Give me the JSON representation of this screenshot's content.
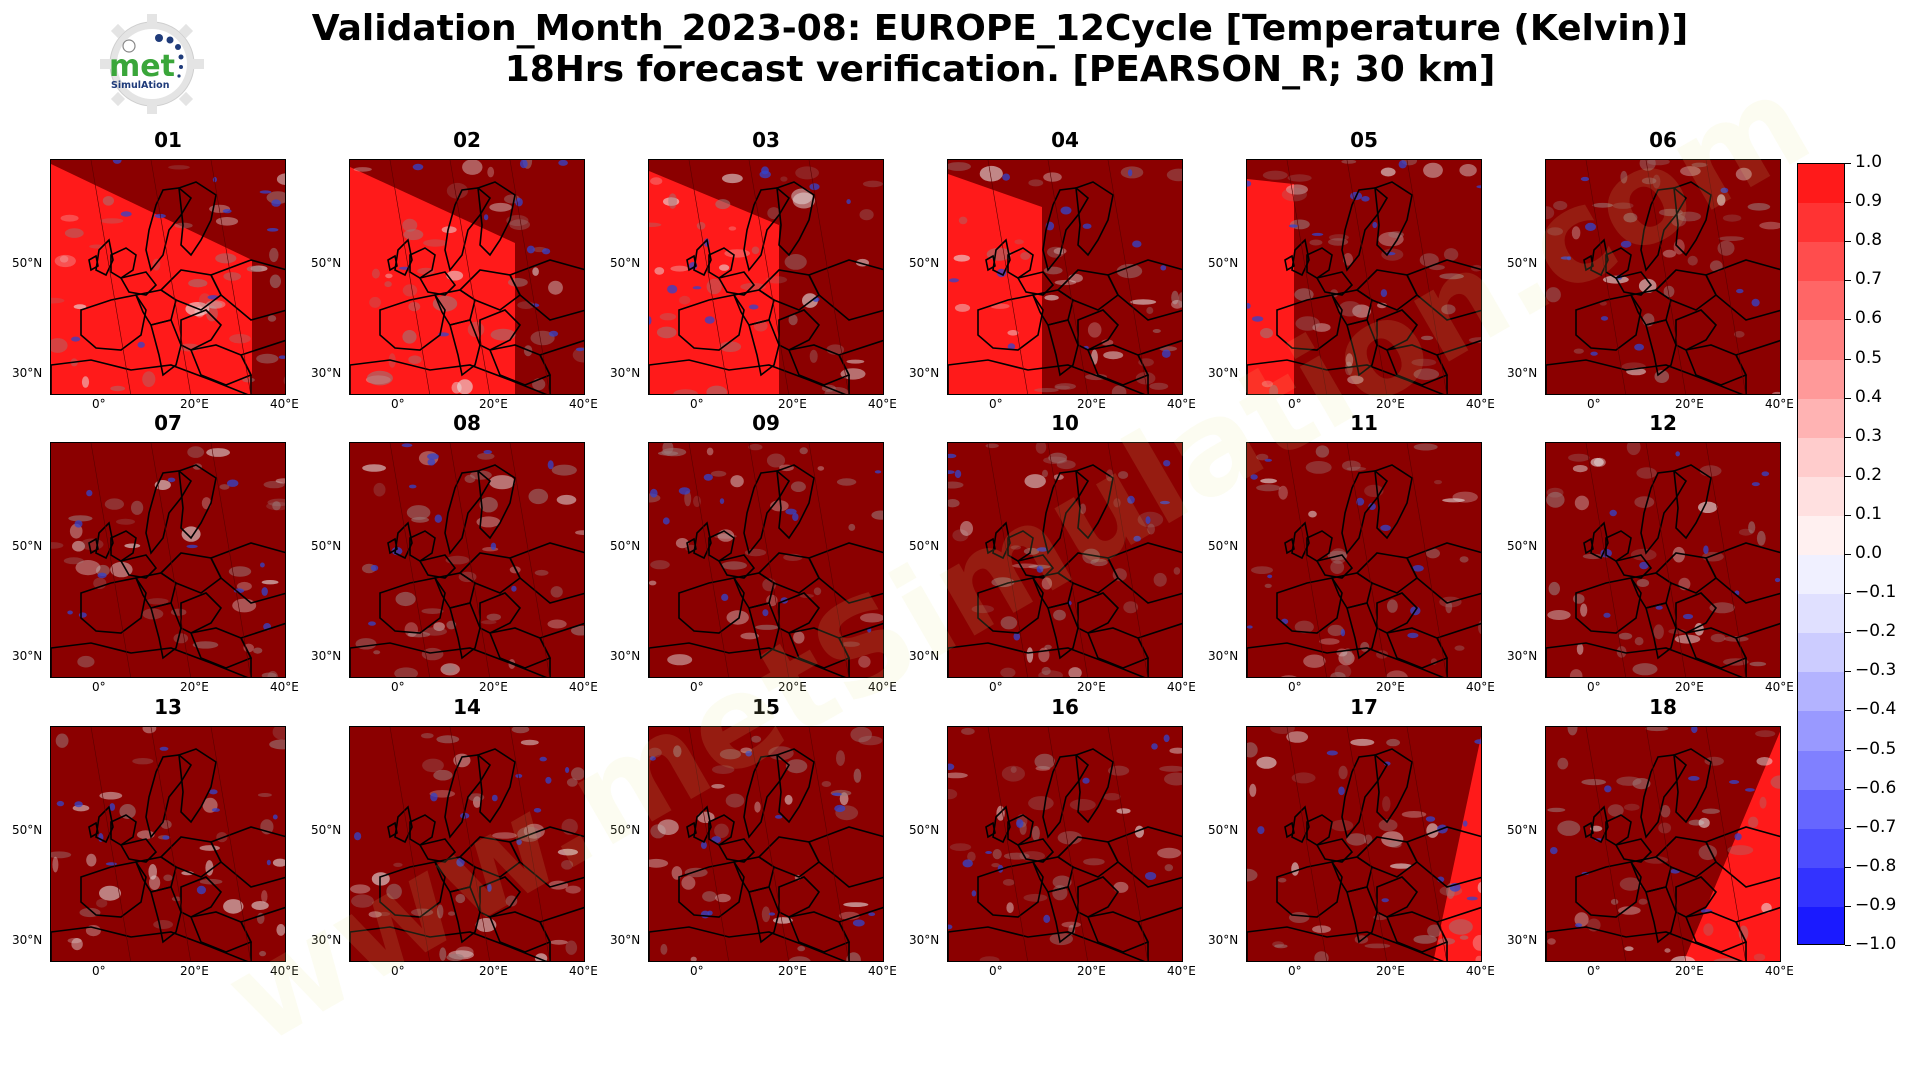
{
  "title": {
    "line1": "Validation_Month_2023-08: EUROPE_12Cycle [Temperature (Kelvin)]",
    "line2": "18Hrs forecast verification.  [PEARSON_R; 30 km]"
  },
  "logo": {
    "text_main": "met",
    "text_sub": "SimulAtion"
  },
  "watermark": "www.metSimulation.com",
  "panels": [
    {
      "label": "01",
      "fade": 0.85
    },
    {
      "label": "02",
      "fade": 0.7
    },
    {
      "label": "03",
      "fade": 0.55
    },
    {
      "label": "04",
      "fade": 0.4
    },
    {
      "label": "05",
      "fade": 0.2
    },
    {
      "label": "06",
      "fade": 0
    },
    {
      "label": "07",
      "fade": 0
    },
    {
      "label": "08",
      "fade": 0
    },
    {
      "label": "09",
      "fade": 0
    },
    {
      "label": "10",
      "fade": 0
    },
    {
      "label": "11",
      "fade": 0
    },
    {
      "label": "12",
      "fade": 0
    },
    {
      "label": "13",
      "fade": 0
    },
    {
      "label": "14",
      "fade": 0
    },
    {
      "label": "15",
      "fade": 0
    },
    {
      "label": "16",
      "fade": 0
    },
    {
      "label": "17",
      "fade": 0.15
    },
    {
      "label": "18",
      "fade": 0.3
    }
  ],
  "axes": {
    "lat_labels": [
      "50°N",
      "30°N"
    ],
    "lon_labels": [
      "0°",
      "20°E",
      "40°E"
    ]
  },
  "colorbar": {
    "labels": [
      "1.0",
      "0.9",
      "0.8",
      "0.7",
      "0.6",
      "0.5",
      "0.4",
      "0.3",
      "0.2",
      "0.1",
      "0.0",
      "−0.1",
      "−0.2",
      "−0.3",
      "−0.4",
      "−0.5",
      "−0.6",
      "−0.7",
      "−0.8",
      "−0.9",
      "−1.0"
    ],
    "colors": [
      "#ff1a1a",
      "#ff3333",
      "#ff4d4d",
      "#ff6666",
      "#ff8080",
      "#ff9999",
      "#ffb3b3",
      "#ffcccc",
      "#ffe0e0",
      "#fff0f0",
      "#f0f0ff",
      "#e0e0ff",
      "#ccccff",
      "#b3b3ff",
      "#9999ff",
      "#8080ff",
      "#6666ff",
      "#4d4dff",
      "#3333ff",
      "#1a1aff"
    ]
  }
}
